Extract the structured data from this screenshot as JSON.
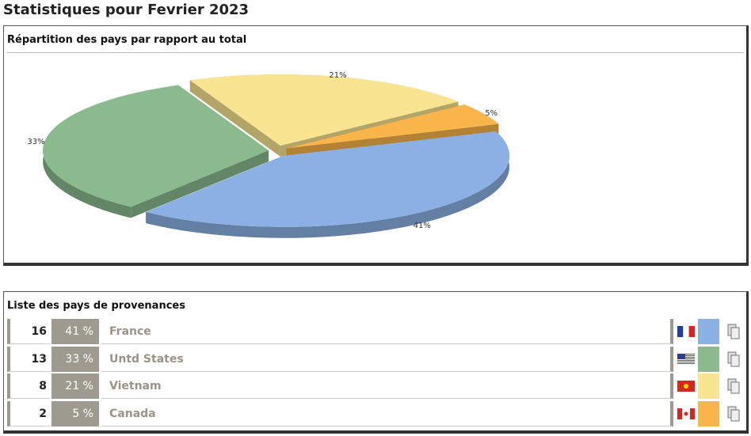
{
  "page_title": "Statistiques pour Fevrier 2023",
  "chart_data": {
    "type": "pie",
    "title": "Répartition des pays par rapport au total",
    "categories": [
      "France",
      "Untd States",
      "Vietnam",
      "Canada"
    ],
    "values": [
      41,
      33,
      21,
      5
    ],
    "value_labels": [
      "41%",
      "33%",
      "21%",
      "5%"
    ],
    "colors": [
      "#8bb1e4",
      "#8aba8e",
      "#f9e491",
      "#f9b44a"
    ]
  },
  "table": {
    "title": "Liste des pays de provenances",
    "rows": [
      {
        "count": 16,
        "percent": "41 %"
      },
      {
        "count": 13,
        "percent": "33 %"
      },
      {
        "count": 8,
        "percent": "21 %"
      },
      {
        "count": 2,
        "percent": "5 %"
      }
    ]
  }
}
